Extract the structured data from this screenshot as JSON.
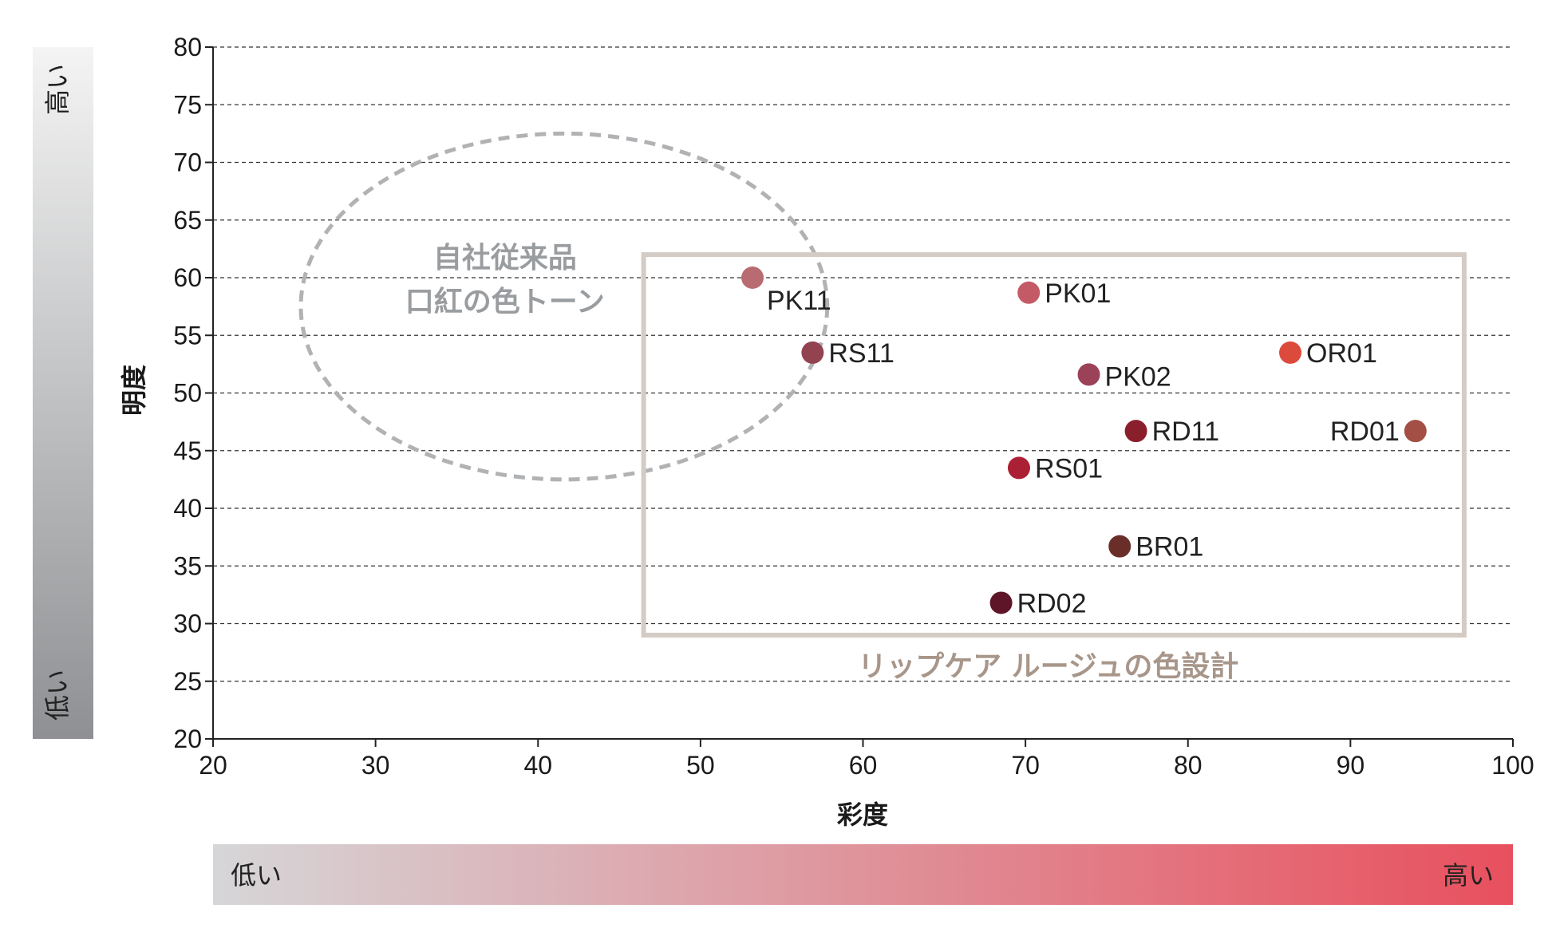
{
  "chart_data": {
    "type": "scatter",
    "xlabel": "彩度",
    "ylabel": "明度",
    "xlim": [
      20,
      100
    ],
    "ylim": [
      20,
      80
    ],
    "x_ticks": [
      20,
      30,
      40,
      50,
      60,
      70,
      80,
      90,
      100
    ],
    "y_ticks": [
      20,
      25,
      30,
      35,
      40,
      45,
      50,
      55,
      60,
      65,
      70,
      75,
      80
    ],
    "grid": "horizontal dashed",
    "points": [
      {
        "label": "PK11",
        "x": 53.2,
        "y": 60.0,
        "color": "#b86b70"
      },
      {
        "label": "PK01",
        "x": 70.2,
        "y": 58.7,
        "color": "#c45a66"
      },
      {
        "label": "RS11",
        "x": 56.9,
        "y": 53.5,
        "color": "#93434f"
      },
      {
        "label": "OR01",
        "x": 86.3,
        "y": 53.5,
        "color": "#dc4a3c"
      },
      {
        "label": "PK02",
        "x": 73.9,
        "y": 51.6,
        "color": "#9b4158"
      },
      {
        "label": "RD11",
        "x": 76.8,
        "y": 46.7,
        "color": "#8a1f2c"
      },
      {
        "label": "RD01",
        "x": 94.0,
        "y": 46.7,
        "color": "#a34f45"
      },
      {
        "label": "RS01",
        "x": 69.6,
        "y": 43.5,
        "color": "#ab2034"
      },
      {
        "label": "BR01",
        "x": 75.8,
        "y": 36.7,
        "color": "#6a2e28"
      },
      {
        "label": "RD02",
        "x": 68.5,
        "y": 31.8,
        "color": "#5e1528"
      }
    ],
    "regions": [
      {
        "type": "ellipse",
        "label_lines": [
          "自社従来品",
          "口紅の色トーン"
        ],
        "cx": 41.6,
        "cy": 57.5,
        "rx_units": 16.2,
        "ry_units": 15.0,
        "color": "#b0b2b4",
        "label_color": "#9a9da0"
      },
      {
        "type": "rectangle",
        "label": "リップケア ルージュの色設計",
        "x0": 46.5,
        "x1": 97.0,
        "y0": 29.0,
        "y1": 62.0,
        "color": "#d4cbc4",
        "label_color": "#a8968a"
      }
    ],
    "vertical_gradient_bar": {
      "top_label": "高い",
      "bottom_label": "低い",
      "top_color": "#f4f4f4",
      "bottom_color": "#8e9093"
    },
    "horizontal_gradient_bar": {
      "left_label": "低い",
      "right_label": "高い",
      "left_color": "#d6d6d8",
      "right_color": "#e8505e"
    }
  }
}
